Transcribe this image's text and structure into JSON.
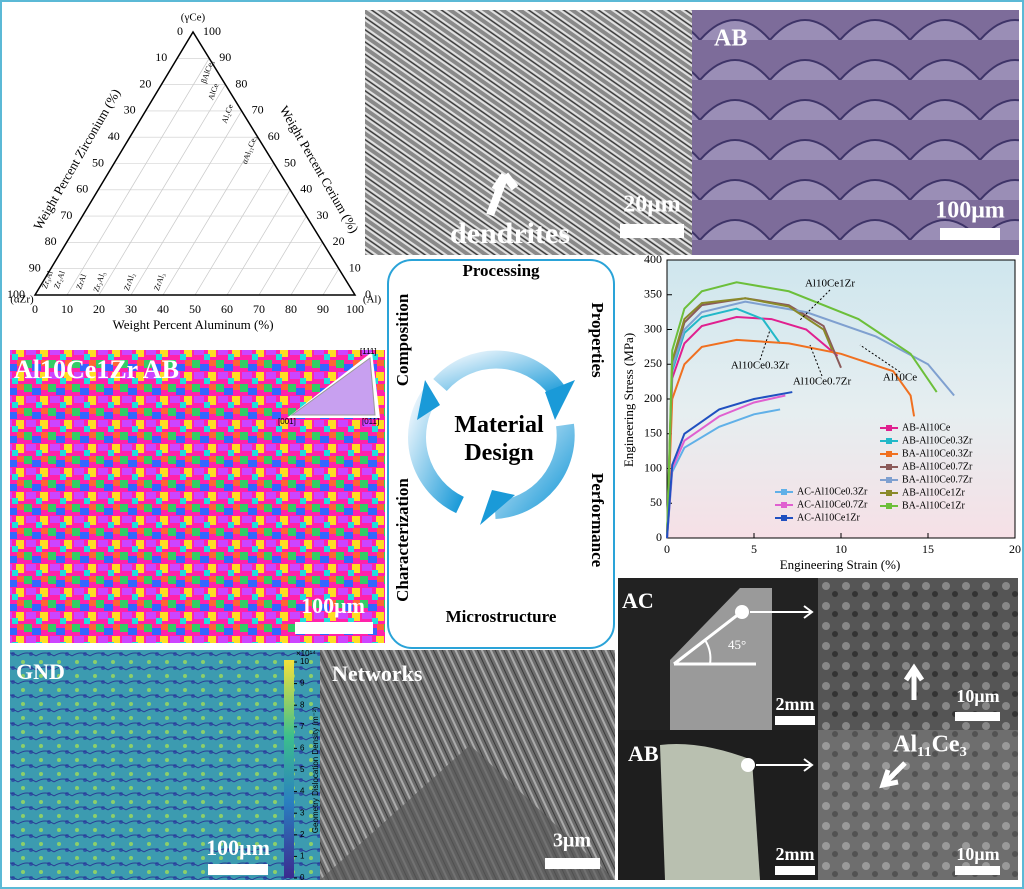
{
  "ternary": {
    "apex_label": "(γCe)",
    "left_vertex_label": "(αZr)",
    "right_vertex_label": "(Al)",
    "left_axis_label": "Weight Percent Zirconium (%)",
    "right_axis_label": "Weight Percent Cerium (%)",
    "bottom_axis_label": "Weight Percent Aluminum (%)",
    "ticks": [
      0,
      10,
      20,
      30,
      40,
      50,
      60,
      70,
      80,
      90,
      100
    ],
    "phases": [
      "βAlCe₃",
      "AlCe",
      "Al₂Ce",
      "αAl₁₁Ce₃",
      "Zr₃Al",
      "Zr₂Al",
      "ZrAl",
      "Zr₂Al₃",
      "ZrAl₂",
      "ZrAl₃"
    ]
  },
  "sem_dendrites": {
    "label": "dendrites",
    "scale_bar": "20μm"
  },
  "optical_ab": {
    "label": "AB",
    "scale_bar": "100μm"
  },
  "ebsd": {
    "label": "Al10Ce1Zr AB",
    "scale_bar": "100μm",
    "ipf_labels": [
      "[111]",
      "[001]",
      "[011]"
    ]
  },
  "cycle": {
    "center": "Material Design",
    "stages": [
      "Processing",
      "Properties",
      "Performance",
      "Microstructure",
      "Characterization",
      "Composition"
    ]
  },
  "chart_data": {
    "type": "line",
    "x_label": "Engineering Strain (%)",
    "y_label": "Engineering Stress (MPa)",
    "xlim": [
      0,
      20
    ],
    "xticks": [
      0,
      5,
      10,
      15,
      20
    ],
    "ylim": [
      0,
      400
    ],
    "yticks": [
      0,
      50,
      100,
      150,
      200,
      250,
      300,
      350,
      400
    ],
    "annotations": [
      "Al10Ce1Zr",
      "Al10Ce0.3Zr",
      "Al10Ce0.7Zr",
      "Al10Ce"
    ],
    "series": [
      {
        "name": "AB-Al10Ce",
        "color": "#e0208f",
        "x": [
          0,
          0.3,
          1,
          2,
          4,
          6,
          8,
          9.8
        ],
        "y": [
          0,
          230,
          280,
          305,
          318,
          315,
          300,
          262
        ]
      },
      {
        "name": "AB-Al10Ce0.3Zr",
        "color": "#22b8c8",
        "x": [
          0,
          0.3,
          1,
          2,
          4,
          5.5,
          6.5
        ],
        "y": [
          0,
          240,
          295,
          318,
          330,
          315,
          280
        ]
      },
      {
        "name": "BA-Al10Ce0.3Zr",
        "color": "#f07020",
        "x": [
          0,
          0.3,
          1,
          2,
          4,
          7,
          10,
          13,
          14,
          14.2
        ],
        "y": [
          0,
          200,
          250,
          275,
          285,
          280,
          265,
          240,
          205,
          175
        ]
      },
      {
        "name": "AB-Al10Ce0.7Zr",
        "color": "#8b5a5a",
        "x": [
          0,
          0.3,
          1,
          2,
          4.5,
          7,
          9,
          10
        ],
        "y": [
          0,
          250,
          310,
          335,
          345,
          335,
          305,
          245
        ]
      },
      {
        "name": "BA-Al10Ce0.7Zr",
        "color": "#7fa0d0",
        "x": [
          0,
          0.3,
          1,
          2,
          4.5,
          8,
          12,
          15,
          16.5
        ],
        "y": [
          0,
          245,
          300,
          325,
          340,
          325,
          290,
          250,
          205
        ]
      },
      {
        "name": "AB-Al10Ce1Zr",
        "color": "#8a8a2a",
        "x": [
          0,
          0.3,
          1,
          2,
          4.5,
          7,
          9,
          9.5
        ],
        "y": [
          0,
          255,
          315,
          338,
          345,
          333,
          300,
          270
        ]
      },
      {
        "name": "BA-Al10Ce1Zr",
        "color": "#6cbf3a",
        "x": [
          0,
          0.3,
          1,
          2,
          4,
          7,
          11,
          14,
          15.5
        ],
        "y": [
          0,
          270,
          330,
          355,
          368,
          355,
          315,
          265,
          210
        ]
      },
      {
        "name": "AC-Al10Ce0.3Zr",
        "color": "#60b0e8",
        "x": [
          0,
          0.3,
          1,
          3,
          5,
          6.5
        ],
        "y": [
          0,
          95,
          130,
          160,
          178,
          185
        ]
      },
      {
        "name": "AC-Al10Ce0.7Zr",
        "color": "#e060d0",
        "x": [
          0,
          0.3,
          1,
          3,
          5,
          6.8
        ],
        "y": [
          0,
          100,
          140,
          175,
          195,
          205
        ]
      },
      {
        "name": "AC-Al10Ce1Zr",
        "color": "#2050c0",
        "x": [
          0,
          0.3,
          1,
          3,
          5,
          7.2
        ],
        "y": [
          0,
          105,
          150,
          185,
          200,
          210
        ]
      }
    ]
  },
  "gnd": {
    "label": "GND",
    "scale_bar": "100μm",
    "colorbar_exponent": "×10¹⁴",
    "colorbar_label": "Geometry Dislocation Density (m⁻²)",
    "colorbar_ticks": [
      0,
      1,
      2,
      3,
      4,
      5,
      6,
      7,
      8,
      9,
      10
    ]
  },
  "networks": {
    "label": "Networks",
    "scale_bar": "3μm"
  },
  "fracture": {
    "ac_label": "AC",
    "angle": "45°",
    "ac_scale_bar": "2mm",
    "ab_label": "AB",
    "ab_scale_bar": "2mm",
    "ac_sem_scale_bar": "10μm",
    "ab_sem_annotation": "Al₁₁Ce₃",
    "ab_sem_scale_bar": "10μm"
  }
}
